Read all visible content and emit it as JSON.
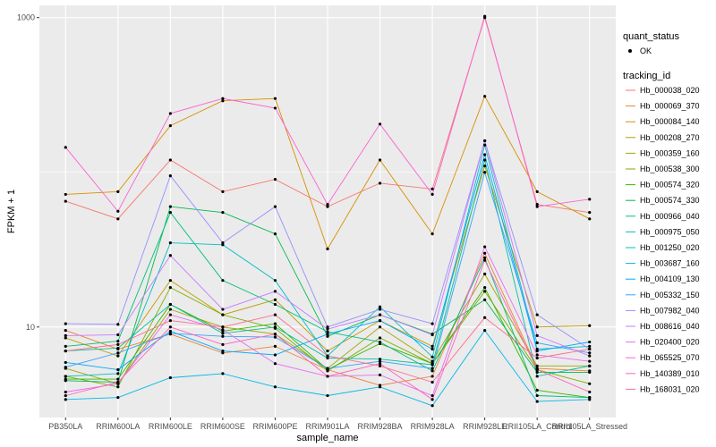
{
  "chart_data": {
    "type": "line",
    "xlabel": "sample_name",
    "ylabel": "FPKM + 1",
    "y_scale": "log10",
    "ylim": [
      2.6,
      1200
    ],
    "yticks": [
      10,
      1000
    ],
    "ytick_labels": [
      "10",
      "1000"
    ],
    "grid": true,
    "legend_position": "right",
    "categories": [
      "PB350LA",
      "RRIM600LA",
      "RRIM600LE",
      "RRIM600SE",
      "RRIM600PE",
      "RRIM901LA",
      "RRIM928BA",
      "RRIM928LA",
      "RRIM928LE",
      "RRII105LA_Control",
      "RRII105LA_Stressed"
    ],
    "legend_quant": {
      "title": "quant_status",
      "items": [
        {
          "label": "OK"
        }
      ]
    },
    "legend_tracking_title": "tracking_id",
    "series": [
      {
        "name": "Hb_000038_020",
        "color": "#F8766D",
        "values": [
          65,
          50,
          120,
          75,
          90,
          60,
          85,
          78,
          1000,
          62,
          55
        ]
      },
      {
        "name": "Hb_000069_370",
        "color": "#EA8331",
        "values": [
          9.5,
          7.2,
          9,
          6.8,
          7.5,
          5.3,
          4.2,
          4.8,
          30,
          5.4,
          5.2
        ]
      },
      {
        "name": "Hb_000084_140",
        "color": "#D89000",
        "values": [
          72,
          75,
          200,
          290,
          300,
          32,
          120,
          40,
          310,
          75,
          50
        ]
      },
      {
        "name": "Hb_000208_270",
        "color": "#C09B00",
        "values": [
          8.5,
          6.5,
          20,
          12,
          15,
          7,
          11,
          7.5,
          110,
          10,
          10.2
        ]
      },
      {
        "name": "Hb_000359_160",
        "color": "#A3A500",
        "values": [
          5.4,
          4.3,
          13,
          10,
          9,
          5.4,
          10,
          6,
          22,
          5.6,
          5.6
        ]
      },
      {
        "name": "Hb_000538_300",
        "color": "#7CAE00",
        "values": [
          4.8,
          4.1,
          18,
          12,
          9.8,
          5.2,
          8.5,
          5.8,
          17,
          5.3,
          4.3
        ]
      },
      {
        "name": "Hb_000574_320",
        "color": "#39B600",
        "values": [
          4.6,
          4.6,
          14,
          9.4,
          10.5,
          5.3,
          7.8,
          5.8,
          18,
          3.9,
          3.5
        ]
      },
      {
        "name": "Hb_000574_330",
        "color": "#00BB4E",
        "values": [
          4.5,
          4.4,
          60,
          55,
          40,
          8.7,
          12,
          9,
          15,
          5.1,
          5.1
        ]
      },
      {
        "name": "Hb_000966_040",
        "color": "#00BF7D",
        "values": [
          7.5,
          8.1,
          55,
          20,
          14,
          9.3,
          8,
          5.2,
          28,
          3.6,
          3.5
        ]
      },
      {
        "name": "Hb_000975_050",
        "color": "#00C1A3",
        "values": [
          7,
          7.3,
          14,
          9.1,
          10,
          6.3,
          6.2,
          5.7,
          120,
          4.8,
          5.6
        ]
      },
      {
        "name": "Hb_001250_020",
        "color": "#00BFC4",
        "values": [
          4.8,
          5,
          35,
          34,
          20,
          6.5,
          13.5,
          6.4,
          150,
          7.2,
          7.5
        ]
      },
      {
        "name": "Hb_003687_160",
        "color": "#00B8E7",
        "values": [
          3.4,
          3.5,
          4.7,
          5,
          4.1,
          3.6,
          4.1,
          3.1,
          9.5,
          3.3,
          3.4
        ]
      },
      {
        "name": "Hb_004109_130",
        "color": "#00A9FF",
        "values": [
          5.9,
          5.3,
          9.4,
          7,
          6.6,
          9,
          11,
          7.2,
          130,
          7,
          8
        ]
      },
      {
        "name": "Hb_005332_150",
        "color": "#35A2FF",
        "values": [
          5.5,
          6.8,
          9.1,
          8.7,
          8.6,
          5.4,
          6,
          5.4,
          100,
          7.9,
          6.8
        ]
      },
      {
        "name": "Hb_007982_040",
        "color": "#9590FF",
        "values": [
          10.5,
          10.4,
          95,
          35,
          60,
          10,
          13,
          10.5,
          160,
          12,
          7.2
        ]
      },
      {
        "name": "Hb_008616_040",
        "color": "#C77CFF",
        "values": [
          8.8,
          8.9,
          29,
          13,
          17,
          9.7,
          12,
          8.9,
          160,
          8.8,
          6.5
        ]
      },
      {
        "name": "Hb_020400_020",
        "color": "#E76BF3",
        "values": [
          3.8,
          4.3,
          12,
          9.6,
          5.8,
          4.8,
          4.9,
          3.6,
          33,
          6.6,
          6
        ]
      },
      {
        "name": "Hb_065525_070",
        "color": "#FA62D5",
        "values": [
          145,
          56,
          240,
          300,
          260,
          62,
          205,
          72,
          1020,
          60,
          67
        ]
      },
      {
        "name": "Hb_140389_010",
        "color": "#FF62BC",
        "values": [
          3.6,
          4.4,
          10,
          7.7,
          9,
          4.8,
          5.8,
          3.4,
          27,
          5.3,
          3.8
        ]
      },
      {
        "name": "Hb_168031_020",
        "color": "#FF6C91",
        "values": [
          7,
          7.7,
          11,
          10,
          12,
          6.5,
          5.6,
          4.4,
          11.5,
          6.3,
          7.2
        ]
      }
    ]
  }
}
